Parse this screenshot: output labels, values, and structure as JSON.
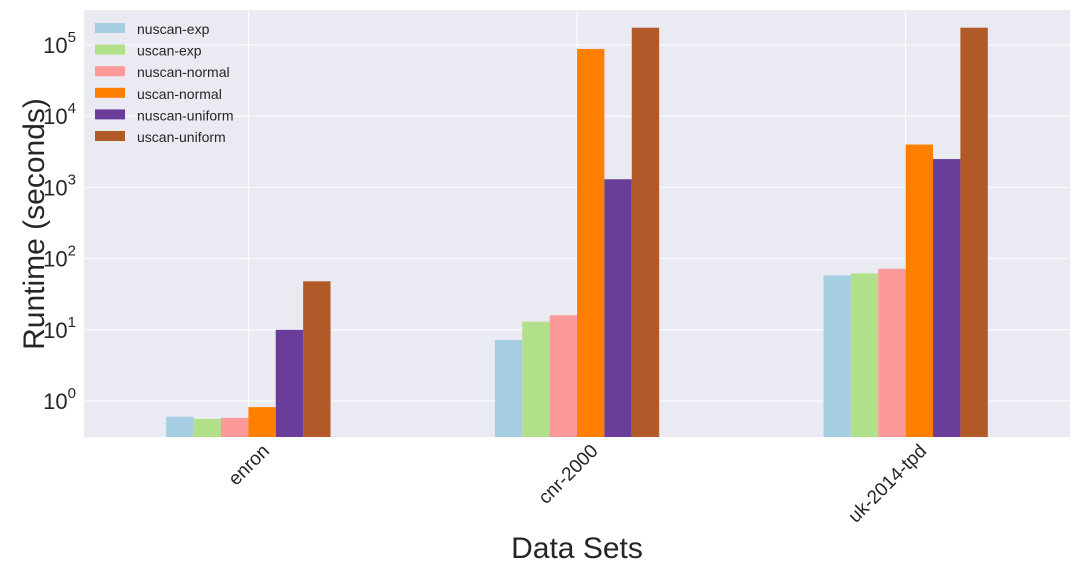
{
  "chart_data": {
    "type": "bar",
    "title": "",
    "xlabel": "Data Sets",
    "ylabel": "Runtime (seconds)",
    "yscale": "log",
    "ylim": [
      0.3,
      350000
    ],
    "grid": true,
    "legend_position": "top-left",
    "categories": [
      "enron",
      "cnr-2000",
      "uk-2014-tpd"
    ],
    "series": [
      {
        "name": "nuscan-exp",
        "color": "#a6cee3",
        "values": [
          0.6,
          7.2,
          58
        ]
      },
      {
        "name": "uscan-exp",
        "color": "#b2df8a",
        "values": [
          0.56,
          13,
          62
        ]
      },
      {
        "name": "nuscan-normal",
        "color": "#fb9a99",
        "values": [
          0.58,
          16,
          72
        ]
      },
      {
        "name": "uscan-normal",
        "color": "#ff7f00",
        "values": [
          0.82,
          88000,
          4000
        ]
      },
      {
        "name": "nuscan-uniform",
        "color": "#6a3d9a",
        "values": [
          10,
          1300,
          2500
        ]
      },
      {
        "name": "uscan-uniform",
        "color": "#b15928",
        "values": [
          48,
          175000,
          175000
        ]
      }
    ],
    "y_ticks": [
      {
        "base": "10",
        "exp": "0",
        "value": 1
      },
      {
        "base": "10",
        "exp": "1",
        "value": 10
      },
      {
        "base": "10",
        "exp": "2",
        "value": 100
      },
      {
        "base": "10",
        "exp": "3",
        "value": 1000
      },
      {
        "base": "10",
        "exp": "4",
        "value": 10000
      },
      {
        "base": "10",
        "exp": "5",
        "value": 100000
      }
    ]
  },
  "colors": {
    "plot_background": "#eaeaf2",
    "grid": "#ffffff",
    "text": "#262626"
  }
}
